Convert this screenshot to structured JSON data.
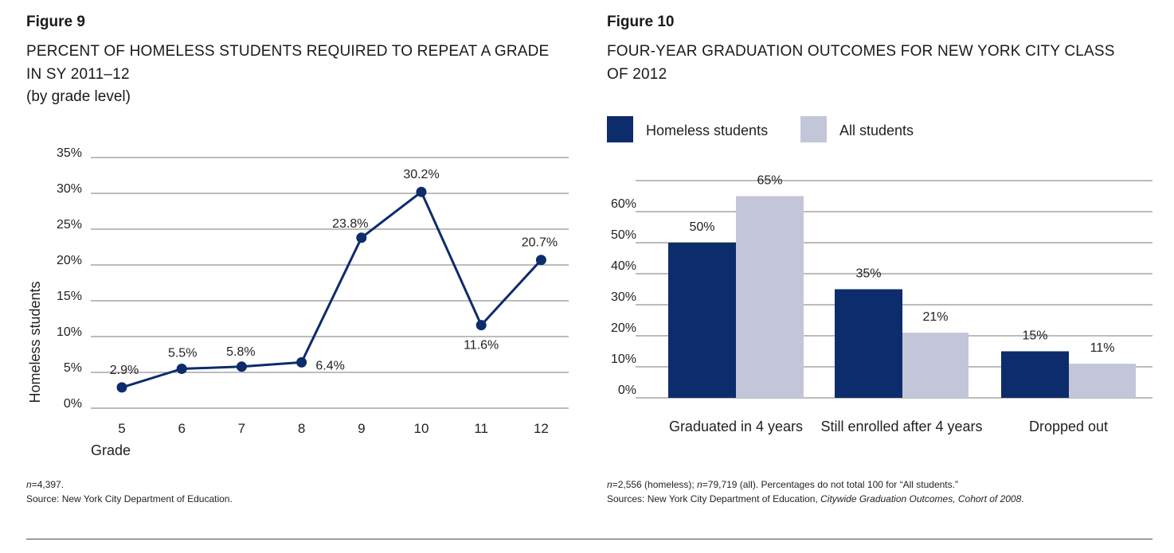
{
  "figure9": {
    "label": "Figure 9",
    "title_line1": "PERCENT OF HOMELESS STUDENTS REQUIRED TO REPEAT A GRADE",
    "title_line2": "IN SY 2011–12",
    "subtitle": "(by grade level)",
    "note_n": "n",
    "note_n_value": "=4,397.",
    "source": "Source: New York City Department of Education."
  },
  "figure10": {
    "label": "Figure 10",
    "title_line1": "FOUR-YEAR GRADUATION OUTCOMES FOR NEW YORK CITY CLASS",
    "title_line2": "OF 2012",
    "note_part1_n": "n",
    "note_part1": "=2,556 (homeless); ",
    "note_part2_n": "n",
    "note_part2": "=79,719 (all). Percentages do not total 100 for “All students.”",
    "source_prefix": "Sources: New York City Department of Education, ",
    "source_title": "Citywide Graduation Outcomes, Cohort of 2008",
    "source_suffix": "."
  },
  "colors": {
    "navy": "#0d2c6b",
    "lavender": "#c3c6d8",
    "grid": "#7a7a7a"
  },
  "chart_data": [
    {
      "type": "line",
      "title": "PERCENT OF HOMELESS STUDENTS REQUIRED TO REPEAT A GRADE IN SY 2011–12",
      "subtitle": "(by grade level)",
      "xlabel": "Grade",
      "ylabel": "Homeless students",
      "categories": [
        "5",
        "6",
        "7",
        "8",
        "9",
        "10",
        "11",
        "12"
      ],
      "values": [
        2.9,
        5.5,
        5.8,
        6.4,
        23.8,
        30.2,
        11.6,
        20.7
      ],
      "data_labels": [
        "2.9%",
        "5.5%",
        "5.8%",
        "6.4%",
        "23.8%",
        "30.2%",
        "11.6%",
        "20.7%"
      ],
      "yticks": [
        "0%",
        "5%",
        "10%",
        "15%",
        "20%",
        "25%",
        "30%",
        "35%"
      ],
      "ylim": [
        0,
        35
      ],
      "grid": true
    },
    {
      "type": "bar",
      "title": "FOUR-YEAR GRADUATION OUTCOMES FOR NEW YORK CITY CLASS OF 2012",
      "categories": [
        "Graduated in 4 years",
        "Still enrolled after 4 years",
        "Dropped out"
      ],
      "series": [
        {
          "name": "Homeless students",
          "values": [
            50,
            35,
            15
          ],
          "labels": [
            "50%",
            "35%",
            "15%"
          ]
        },
        {
          "name": "All students",
          "values": [
            65,
            21,
            11
          ],
          "labels": [
            "65%",
            "21%",
            "11%"
          ]
        }
      ],
      "yticks": [
        "0%",
        "10%",
        "20%",
        "30%",
        "40%",
        "50%",
        "60%"
      ],
      "ylim": [
        0,
        70
      ],
      "legend": "top-left",
      "grid": true
    }
  ]
}
